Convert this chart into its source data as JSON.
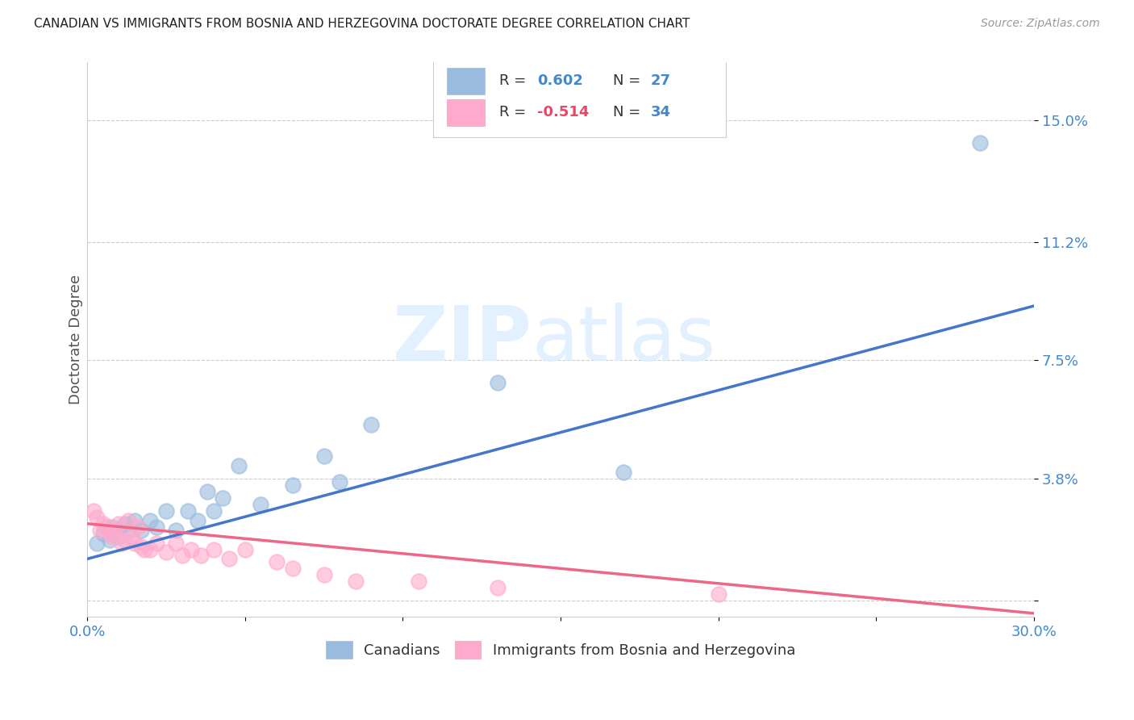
{
  "title": "CANADIAN VS IMMIGRANTS FROM BOSNIA AND HERZEGOVINA DOCTORATE DEGREE CORRELATION CHART",
  "source": "Source: ZipAtlas.com",
  "ylabel": "Doctorate Degree",
  "xlim": [
    0.0,
    0.3
  ],
  "ylim": [
    -0.005,
    0.168
  ],
  "yticks": [
    0.0,
    0.038,
    0.075,
    0.112,
    0.15
  ],
  "ytick_labels": [
    "",
    "3.8%",
    "7.5%",
    "11.2%",
    "15.0%"
  ],
  "xticks": [
    0.0,
    0.05,
    0.1,
    0.15,
    0.2,
    0.25,
    0.3
  ],
  "xtick_labels": [
    "0.0%",
    "",
    "",
    "",
    "",
    "",
    "30.0%"
  ],
  "canadian_R": 0.602,
  "canadian_N": 27,
  "immigrant_R": -0.514,
  "immigrant_N": 34,
  "blue_color": "#99BBDD",
  "pink_color": "#FFAACC",
  "blue_line_color": "#4477CC",
  "pink_line_color": "#EE6688",
  "canadians_x": [
    0.003,
    0.005,
    0.007,
    0.008,
    0.01,
    0.012,
    0.013,
    0.015,
    0.017,
    0.02,
    0.022,
    0.025,
    0.028,
    0.032,
    0.035,
    0.038,
    0.04,
    0.043,
    0.048,
    0.055,
    0.065,
    0.075,
    0.08,
    0.09,
    0.13,
    0.17,
    0.283
  ],
  "canadians_y": [
    0.018,
    0.021,
    0.019,
    0.023,
    0.02,
    0.024,
    0.022,
    0.025,
    0.022,
    0.025,
    0.023,
    0.028,
    0.022,
    0.028,
    0.025,
    0.034,
    0.028,
    0.032,
    0.042,
    0.03,
    0.036,
    0.045,
    0.037,
    0.055,
    0.068,
    0.04,
    0.143
  ],
  "immigrants_x": [
    0.002,
    0.003,
    0.004,
    0.005,
    0.006,
    0.007,
    0.008,
    0.009,
    0.01,
    0.011,
    0.012,
    0.013,
    0.014,
    0.015,
    0.016,
    0.017,
    0.018,
    0.02,
    0.022,
    0.025,
    0.028,
    0.03,
    0.033,
    0.036,
    0.04,
    0.045,
    0.05,
    0.06,
    0.065,
    0.075,
    0.085,
    0.105,
    0.13,
    0.2
  ],
  "immigrants_y": [
    0.028,
    0.026,
    0.022,
    0.024,
    0.023,
    0.021,
    0.02,
    0.022,
    0.024,
    0.018,
    0.019,
    0.025,
    0.02,
    0.018,
    0.023,
    0.017,
    0.016,
    0.016,
    0.018,
    0.015,
    0.018,
    0.014,
    0.016,
    0.014,
    0.016,
    0.013,
    0.016,
    0.012,
    0.01,
    0.008,
    0.006,
    0.006,
    0.004,
    0.002
  ],
  "blue_line_x0": 0.0,
  "blue_line_y0": 0.013,
  "blue_line_x1": 0.3,
  "blue_line_y1": 0.092,
  "pink_line_x0": 0.0,
  "pink_line_y0": 0.024,
  "pink_line_x1": 0.3,
  "pink_line_y1": -0.004
}
